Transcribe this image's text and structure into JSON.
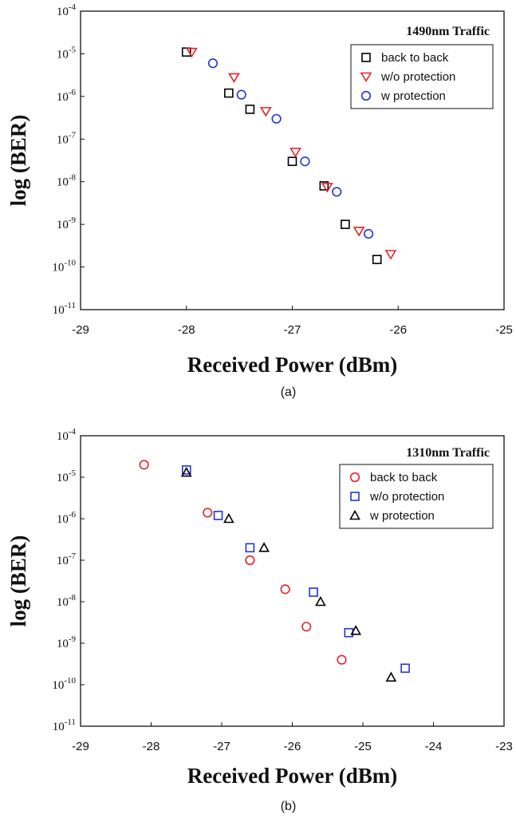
{
  "chart_data": [
    {
      "type": "scatter",
      "panel_title": "1490nm Traffic",
      "caption": "(a)",
      "xlabel": "Received Power (dBm)",
      "ylabel": "log (BER)",
      "xlim": [
        -29,
        -25
      ],
      "xticks": [
        "-29",
        "-28",
        "-27",
        "-26",
        "-25"
      ],
      "ylim_exp": [
        -11,
        -4
      ],
      "yscale": "log",
      "legend_position": "top-right",
      "grid": false,
      "series": [
        {
          "name": "back to back",
          "marker": "square",
          "color": "#000000",
          "x": [
            -28.0,
            -27.6,
            -27.4,
            -27.0,
            -26.7,
            -26.5,
            -26.2
          ],
          "y": [
            1.1e-05,
            1.2e-06,
            5e-07,
            3e-08,
            8e-09,
            1e-09,
            1.5e-10
          ]
        },
        {
          "name": "w/o protection",
          "marker": "triangle-down",
          "color": "#e8202a",
          "x": [
            -27.95,
            -27.55,
            -27.25,
            -26.97,
            -26.67,
            -26.37,
            -26.07
          ],
          "y": [
            1.1e-05,
            2.8e-06,
            4.5e-07,
            5e-08,
            7.5e-09,
            7e-10,
            2e-10
          ]
        },
        {
          "name": "w protection",
          "marker": "circle",
          "color": "#2533d8",
          "x": [
            -27.75,
            -27.48,
            -27.15,
            -26.88,
            -26.58,
            -26.28
          ],
          "y": [
            6e-06,
            1.1e-06,
            3e-07,
            3e-08,
            5.8e-09,
            6e-10
          ]
        }
      ]
    },
    {
      "type": "scatter",
      "panel_title": "1310nm Traffic",
      "caption": "(b)",
      "xlabel": "Received Power (dBm)",
      "ylabel": "log (BER)",
      "xlim": [
        -29,
        -23
      ],
      "xticks": [
        "-29",
        "-28",
        "-27",
        "-26",
        "-25",
        "-24",
        "-23"
      ],
      "ylim_exp": [
        -11,
        -4
      ],
      "yscale": "log",
      "legend_position": "top-right",
      "grid": false,
      "series": [
        {
          "name": "back to back",
          "marker": "circle",
          "color": "#e8202a",
          "x": [
            -28.1,
            -27.2,
            -26.6,
            -26.1,
            -25.8,
            -25.3
          ],
          "y": [
            2e-05,
            1.4e-06,
            1e-07,
            2e-08,
            2.5e-09,
            4e-10
          ]
        },
        {
          "name": "w/o protection",
          "marker": "square",
          "color": "#2533d8",
          "x": [
            -27.5,
            -27.05,
            -26.6,
            -25.7,
            -25.2,
            -24.4
          ],
          "y": [
            1.5e-05,
            1.2e-06,
            2e-07,
            1.7e-08,
            1.8e-09,
            2.5e-10
          ]
        },
        {
          "name": "w protection",
          "marker": "triangle-up",
          "color": "#000000",
          "x": [
            -27.5,
            -26.9,
            -26.4,
            -25.6,
            -25.1,
            -24.6
          ],
          "y": [
            1.3e-05,
            1e-06,
            2e-07,
            1e-08,
            2e-09,
            1.5e-10
          ]
        }
      ]
    }
  ]
}
